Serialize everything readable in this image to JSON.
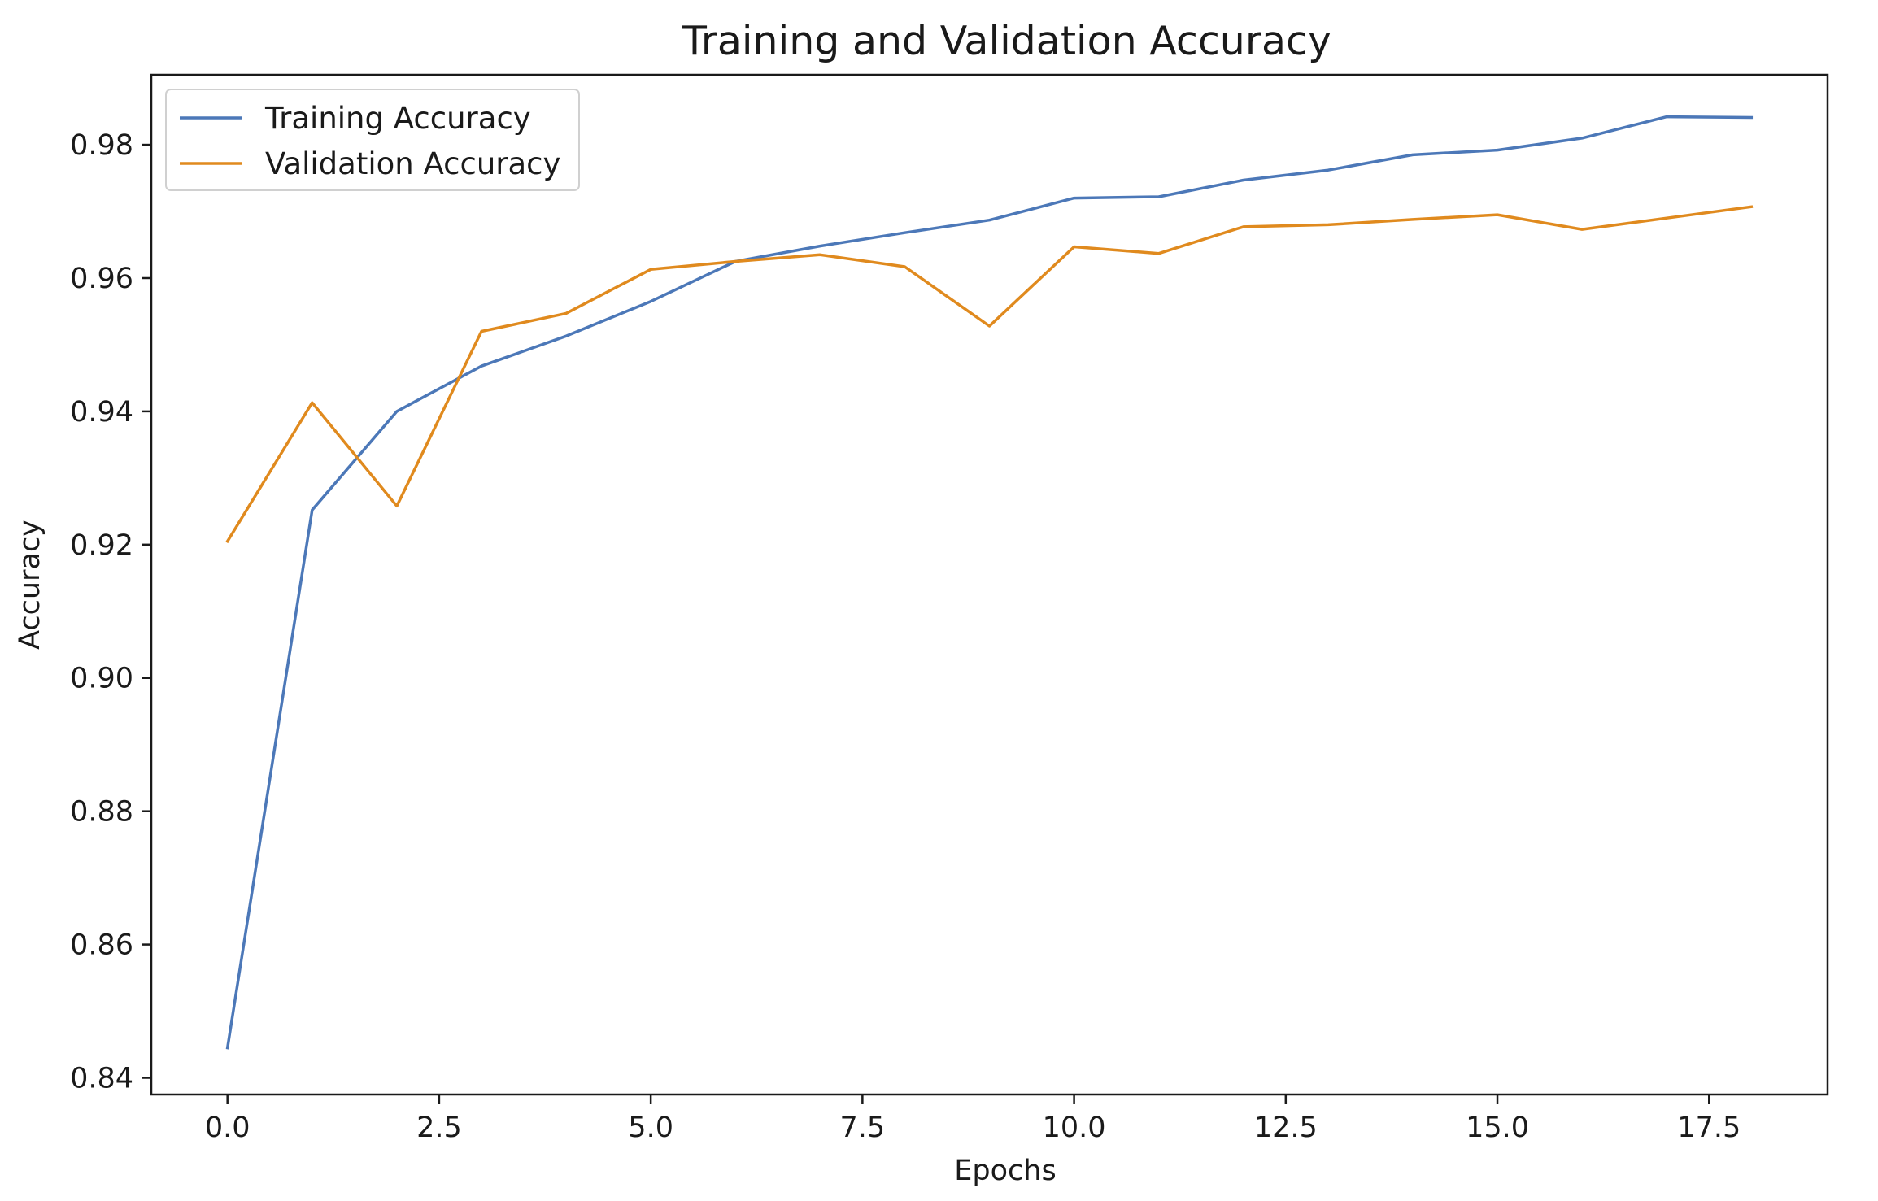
{
  "chart_data": {
    "type": "line",
    "title": "Training and Validation Accuracy",
    "xlabel": "Epochs",
    "ylabel": "Accuracy",
    "xlim": [
      -0.9,
      18.9
    ],
    "ylim": [
      0.8375,
      0.9905
    ],
    "x": [
      0,
      1,
      2,
      3,
      4,
      5,
      6,
      7,
      8,
      9,
      10,
      11,
      12,
      13,
      14,
      15,
      16,
      17,
      18
    ],
    "xticks": [
      0.0,
      2.5,
      5.0,
      7.5,
      10.0,
      12.5,
      15.0,
      17.5
    ],
    "xtick_labels": [
      "0.0",
      "2.5",
      "5.0",
      "7.5",
      "10.0",
      "12.5",
      "15.0",
      "17.5"
    ],
    "yticks": [
      0.84,
      0.86,
      0.88,
      0.9,
      0.92,
      0.94,
      0.96,
      0.98
    ],
    "ytick_labels": [
      "0.84",
      "0.86",
      "0.88",
      "0.90",
      "0.92",
      "0.94",
      "0.96",
      "0.98"
    ],
    "grid": false,
    "legend_position": "upper left",
    "series": [
      {
        "name": "Training Accuracy",
        "color": "#4c78b8",
        "values": [
          0.8445,
          0.9252,
          0.94,
          0.9468,
          0.9513,
          0.9565,
          0.9625,
          0.9648,
          0.9668,
          0.9687,
          0.972,
          0.9722,
          0.9747,
          0.9762,
          0.9785,
          0.9792,
          0.981,
          0.9842,
          0.9841
        ]
      },
      {
        "name": "Validation Accuracy",
        "color": "#e08a1e",
        "values": [
          0.9205,
          0.9413,
          0.9258,
          0.952,
          0.9547,
          0.9613,
          0.9625,
          0.9635,
          0.9617,
          0.9528,
          0.9647,
          0.9637,
          0.9677,
          0.968,
          0.9688,
          0.9695,
          0.9673,
          0.969,
          0.9707
        ]
      }
    ]
  }
}
